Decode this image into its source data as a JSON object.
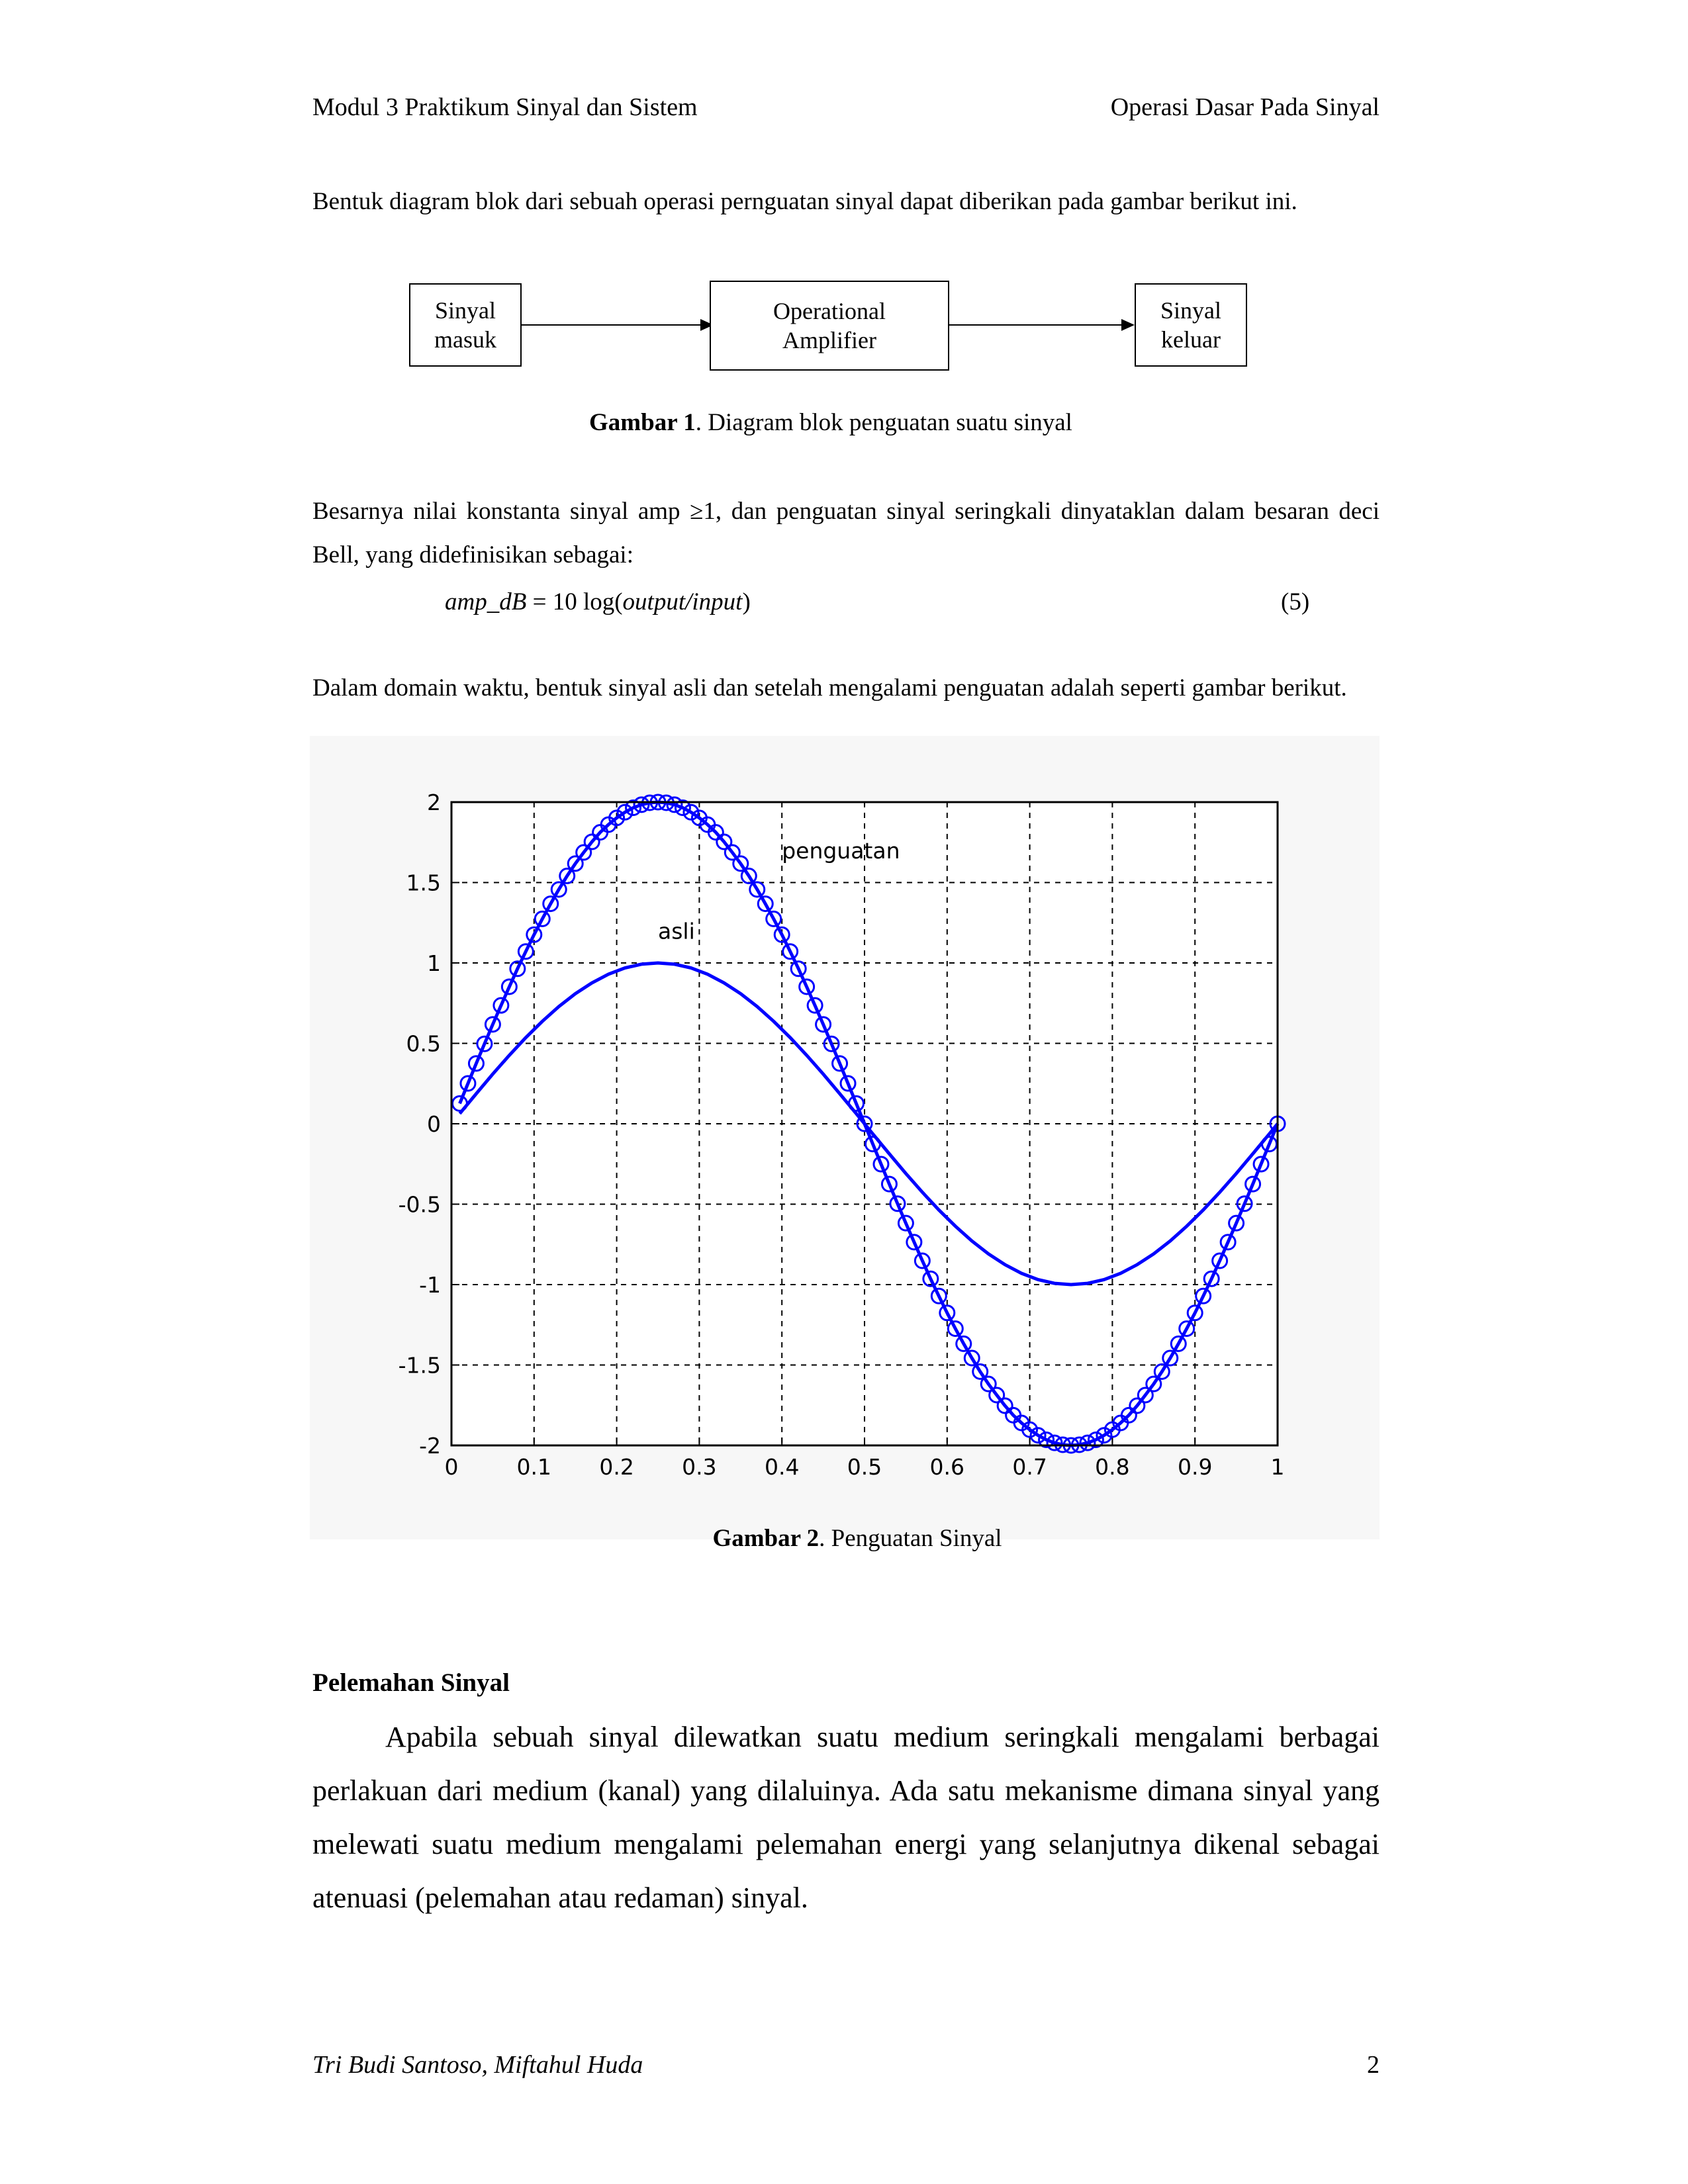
{
  "header": {
    "left": "Modul 3 Praktikum Sinyal dan Sistem",
    "right": "Operasi Dasar Pada Sinyal"
  },
  "intro_text": "Bentuk diagram blok dari sebuah operasi pernguatan sinyal dapat diberikan pada gambar berikut ini.",
  "block_diagram": {
    "input": [
      "Sinyal",
      "masuk"
    ],
    "process": [
      "Operational",
      "Amplifier"
    ],
    "output": [
      "Sinyal",
      "keluar"
    ]
  },
  "figure1": {
    "label": "Gambar 1",
    "caption": ". Diagram blok penguatan suatu sinyal"
  },
  "besarnya_text": "Besarnya  nilai konstanta sinyal amp ≥1, dan penguatan sinyal seringkali dinyataklan dalam besaran deci Bell, yang didefinisikan sebagai:",
  "formula": {
    "lhs": "amp_dB",
    "eq": " = 10 log(",
    "arg": "output/input",
    "close": ")",
    "number": "(5)"
  },
  "dalam_text": "Dalam domain waktu, bentuk sinyal asli dan setelah mengalami penguatan adalah seperti gambar berikut.",
  "figure2": {
    "label": "Gambar 2",
    "caption": ". Penguatan Sinyal"
  },
  "section_title": "Pelemahan Sinyal",
  "section_body": "Apabila sebuah sinyal dilewatkan suatu medium seringkali mengalami berbagai perlakuan dari medium (kanal) yang dilaluinya. Ada satu mekanisme dimana sinyal yang melewati suatu medium mengalami pelemahan energi yang selanjutnya dikenal sebagai atenuasi (pelemahan atau redaman) sinyal.",
  "footer": {
    "authors": "Tri Budi Santoso, Miftahul Huda",
    "page": "2"
  },
  "chart_data": {
    "type": "line",
    "title": "",
    "xlabel": "",
    "ylabel": "",
    "xlim": [
      0,
      1
    ],
    "ylim": [
      -2,
      2
    ],
    "grid": true,
    "grid_style": "dashed",
    "x_ticks": [
      "0",
      "0.1",
      "0.2",
      "0.3",
      "0.4",
      "0.5",
      "0.6",
      "0.7",
      "0.8",
      "0.9",
      "1"
    ],
    "y_ticks": [
      "2",
      "1.5",
      "1",
      "0.5",
      "0",
      "-0.5",
      "-1",
      "-1.5",
      "-2"
    ],
    "line_color": "#0000ff",
    "annotations": [
      {
        "text": "penguatan",
        "x": 0.4,
        "y": 1.65
      },
      {
        "text": "asli",
        "x": 0.25,
        "y": 1.15
      }
    ],
    "series": [
      {
        "name": "asli",
        "marker": "none",
        "x": [
          0.01,
          0.03,
          0.05,
          0.07,
          0.09,
          0.11,
          0.13,
          0.15,
          0.17,
          0.19,
          0.21,
          0.23,
          0.25,
          0.27,
          0.29,
          0.31,
          0.33,
          0.35,
          0.37,
          0.39,
          0.41,
          0.43,
          0.45,
          0.47,
          0.49,
          0.51,
          0.53,
          0.55,
          0.57,
          0.59,
          0.61,
          0.63,
          0.65,
          0.67,
          0.69,
          0.71,
          0.73,
          0.75,
          0.77,
          0.79,
          0.81,
          0.83,
          0.85,
          0.87,
          0.89,
          0.91,
          0.93,
          0.95,
          0.97,
          0.99,
          1.0
        ],
        "y": [
          0.063,
          0.187,
          0.309,
          0.426,
          0.536,
          0.637,
          0.729,
          0.809,
          0.876,
          0.93,
          0.969,
          0.992,
          1.0,
          0.992,
          0.969,
          0.93,
          0.876,
          0.809,
          0.729,
          0.637,
          0.536,
          0.426,
          0.309,
          0.187,
          0.063,
          -0.063,
          -0.187,
          -0.309,
          -0.426,
          -0.536,
          -0.637,
          -0.729,
          -0.809,
          -0.876,
          -0.93,
          -0.969,
          -0.992,
          -1.0,
          -0.992,
          -0.969,
          -0.93,
          -0.876,
          -0.809,
          -0.729,
          -0.637,
          -0.536,
          -0.426,
          -0.309,
          -0.187,
          -0.063,
          0.0
        ]
      },
      {
        "name": "penguatan",
        "marker": "circle",
        "x": [
          0.01,
          0.02,
          0.03,
          0.04,
          0.05,
          0.06,
          0.07,
          0.08,
          0.09,
          0.1,
          0.11,
          0.12,
          0.13,
          0.14,
          0.15,
          0.16,
          0.17,
          0.18,
          0.19,
          0.2,
          0.21,
          0.22,
          0.23,
          0.24,
          0.25,
          0.26,
          0.27,
          0.28,
          0.29,
          0.3,
          0.31,
          0.32,
          0.33,
          0.34,
          0.35,
          0.36,
          0.37,
          0.38,
          0.39,
          0.4,
          0.41,
          0.42,
          0.43,
          0.44,
          0.45,
          0.46,
          0.47,
          0.48,
          0.49,
          0.5,
          0.51,
          0.52,
          0.53,
          0.54,
          0.55,
          0.56,
          0.57,
          0.58,
          0.59,
          0.6,
          0.61,
          0.62,
          0.63,
          0.64,
          0.65,
          0.66,
          0.67,
          0.68,
          0.69,
          0.7,
          0.71,
          0.72,
          0.73,
          0.74,
          0.75,
          0.76,
          0.77,
          0.78,
          0.79,
          0.8,
          0.81,
          0.82,
          0.83,
          0.84,
          0.85,
          0.86,
          0.87,
          0.88,
          0.89,
          0.9,
          0.91,
          0.92,
          0.93,
          0.94,
          0.95,
          0.96,
          0.97,
          0.98,
          0.99,
          1.0
        ],
        "y": [
          0.126,
          0.251,
          0.375,
          0.497,
          0.618,
          0.736,
          0.852,
          0.964,
          1.071,
          1.176,
          1.274,
          1.368,
          1.457,
          1.541,
          1.618,
          1.687,
          1.753,
          1.812,
          1.86,
          1.902,
          1.937,
          1.965,
          1.984,
          1.996,
          2.0,
          1.996,
          1.984,
          1.965,
          1.937,
          1.902,
          1.86,
          1.812,
          1.753,
          1.687,
          1.618,
          1.541,
          1.457,
          1.368,
          1.274,
          1.176,
          1.071,
          0.964,
          0.852,
          0.736,
          0.618,
          0.497,
          0.375,
          0.251,
          0.126,
          0.0,
          -0.126,
          -0.251,
          -0.375,
          -0.497,
          -0.618,
          -0.736,
          -0.852,
          -0.964,
          -1.071,
          -1.176,
          -1.274,
          -1.368,
          -1.457,
          -1.541,
          -1.618,
          -1.687,
          -1.753,
          -1.812,
          -1.86,
          -1.902,
          -1.937,
          -1.965,
          -1.984,
          -1.996,
          -2.0,
          -1.996,
          -1.984,
          -1.965,
          -1.937,
          -1.902,
          -1.86,
          -1.812,
          -1.753,
          -1.687,
          -1.618,
          -1.541,
          -1.457,
          -1.368,
          -1.274,
          -1.176,
          -1.071,
          -0.964,
          -0.852,
          -0.736,
          -0.618,
          -0.497,
          -0.375,
          -0.251,
          -0.126,
          0.0
        ]
      }
    ]
  }
}
